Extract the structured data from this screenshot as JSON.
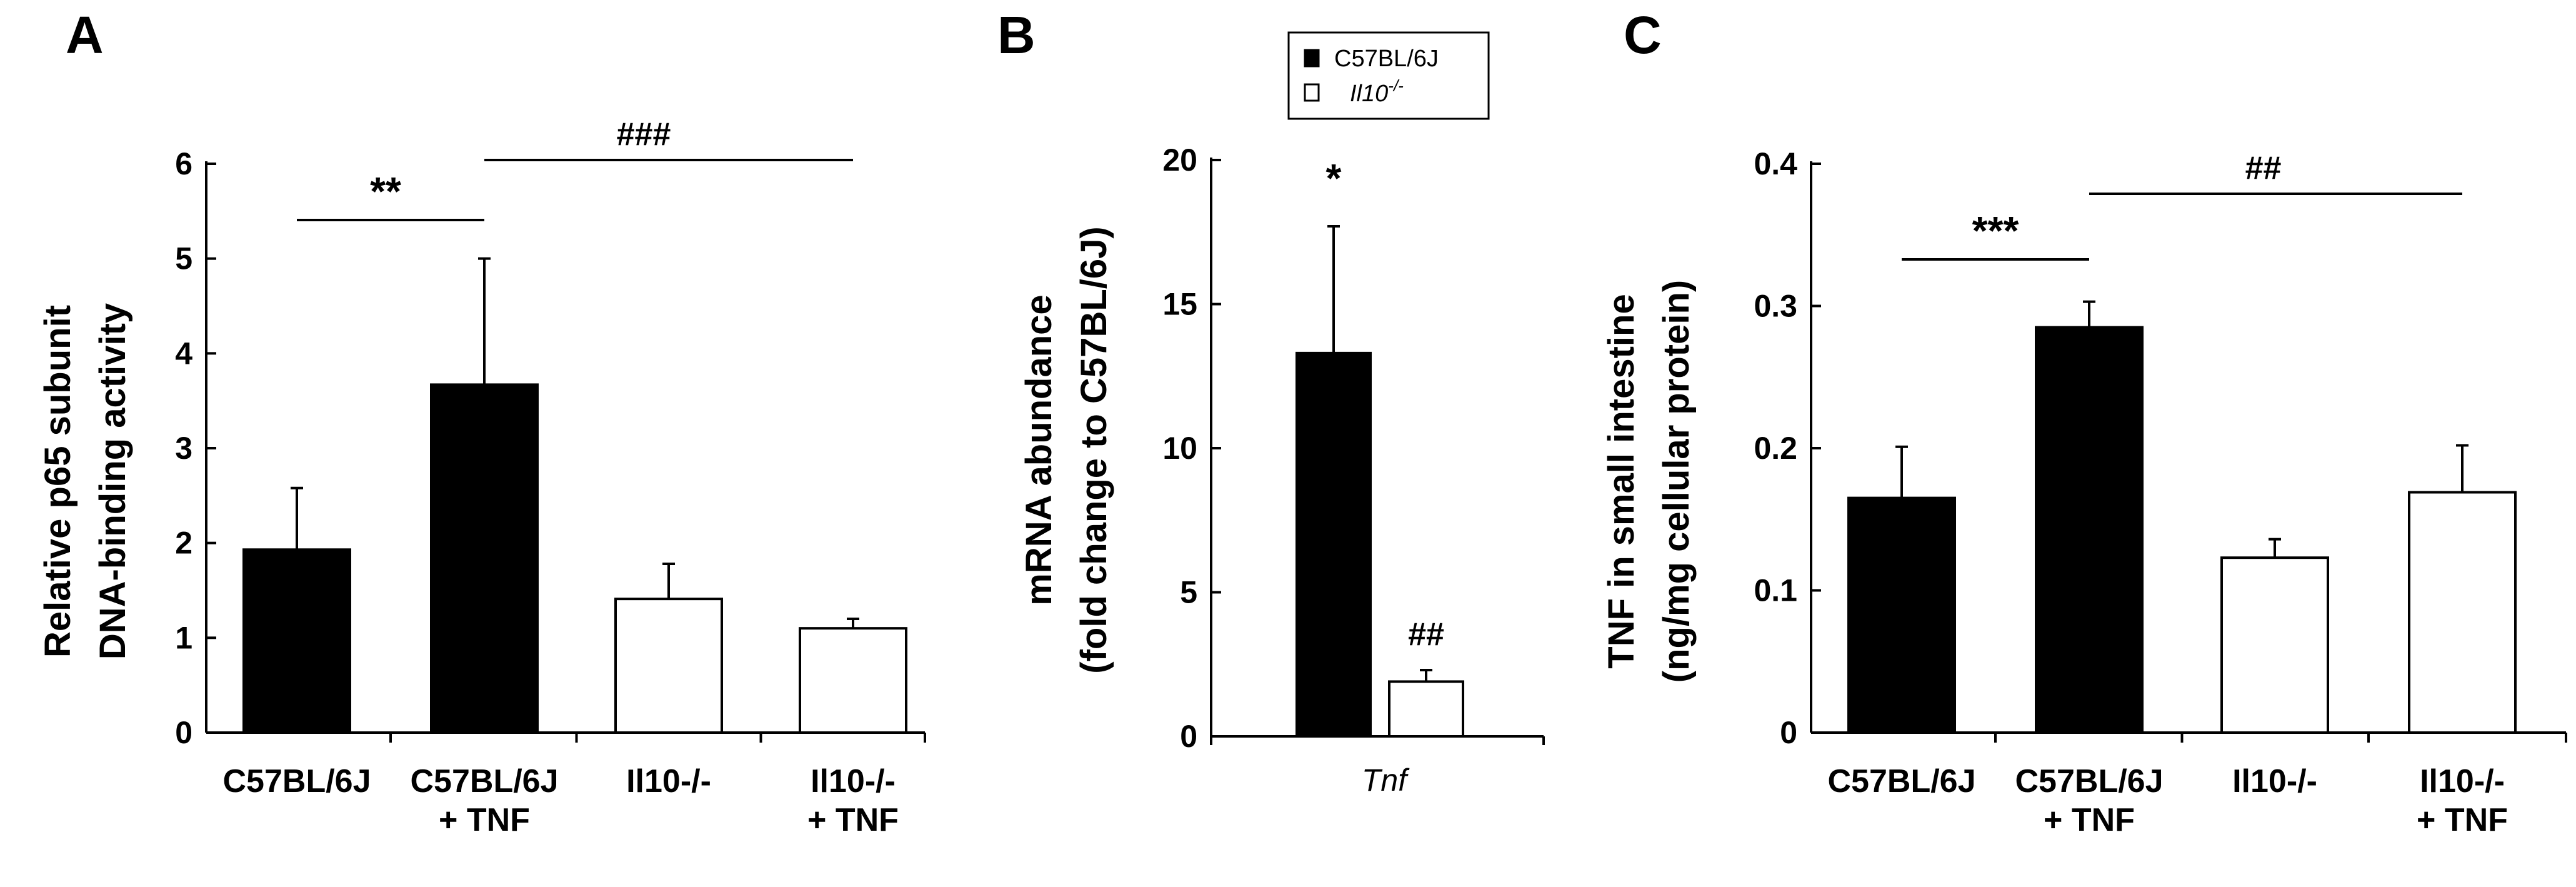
{
  "chart_data": [
    {
      "panel": "A",
      "type": "bar",
      "ylabel": [
        "Relative p65 subunit",
        "DNA-binding activity"
      ],
      "ylim": [
        0,
        6
      ],
      "yticks": [
        0,
        1,
        2,
        3,
        4,
        5,
        6
      ],
      "categories": [
        [
          "C57BL/6J"
        ],
        [
          "C57BL/6J",
          "+ TNF"
        ],
        [
          "Il10-/-"
        ],
        [
          "Il10-/-",
          "+ TNF"
        ]
      ],
      "values": [
        1.93,
        3.67,
        1.41,
        1.1
      ],
      "errors": [
        0.65,
        1.33,
        0.37,
        0.1
      ],
      "fills": [
        "#000000",
        "#000000",
        "#ffffff",
        "#ffffff"
      ],
      "significance": [
        {
          "label": "**",
          "from": 0,
          "to": 1
        },
        {
          "label": "###",
          "from": 1,
          "to": 3
        }
      ]
    },
    {
      "panel": "B",
      "type": "bar",
      "ylabel": [
        "mRNA abundance",
        "(fold change to C57BL/6J)"
      ],
      "ylim": [
        0,
        20
      ],
      "yticks": [
        0,
        5,
        10,
        15,
        20
      ],
      "xlabel": "Tnf",
      "legend": [
        {
          "label": "C57BL/6J",
          "fill": "#000000"
        },
        {
          "label": "Il10",
          "superscript": "-/-",
          "fill": "#ffffff"
        }
      ],
      "series": [
        {
          "name": "C57BL/6J",
          "values": [
            13.3
          ],
          "errors": [
            4.4
          ],
          "annotation": "*"
        },
        {
          "name": "Il10-/-",
          "values": [
            1.9
          ],
          "errors": [
            0.4
          ],
          "annotation": "##"
        }
      ]
    },
    {
      "panel": "C",
      "type": "bar",
      "ylabel": [
        "TNF in small intestine",
        "(ng/mg cellular protein)"
      ],
      "ylim": [
        0,
        0.4
      ],
      "yticks": [
        "0",
        "0.1",
        "0.2",
        "0.3",
        "0.4"
      ],
      "categories": [
        [
          "C57BL/6J"
        ],
        [
          "C57BL/6J",
          "+ TNF"
        ],
        [
          "Il10-/-"
        ],
        [
          "Il10-/-",
          "+ TNF"
        ]
      ],
      "values": [
        0.165,
        0.285,
        0.123,
        0.169
      ],
      "errors": [
        0.036,
        0.018,
        0.013,
        0.033
      ],
      "fills": [
        "#000000",
        "#000000",
        "#ffffff",
        "#ffffff"
      ],
      "significance": [
        {
          "label": "***",
          "from": 0,
          "to": 1
        },
        {
          "label": "##",
          "from": 1,
          "to": 3
        }
      ]
    }
  ]
}
